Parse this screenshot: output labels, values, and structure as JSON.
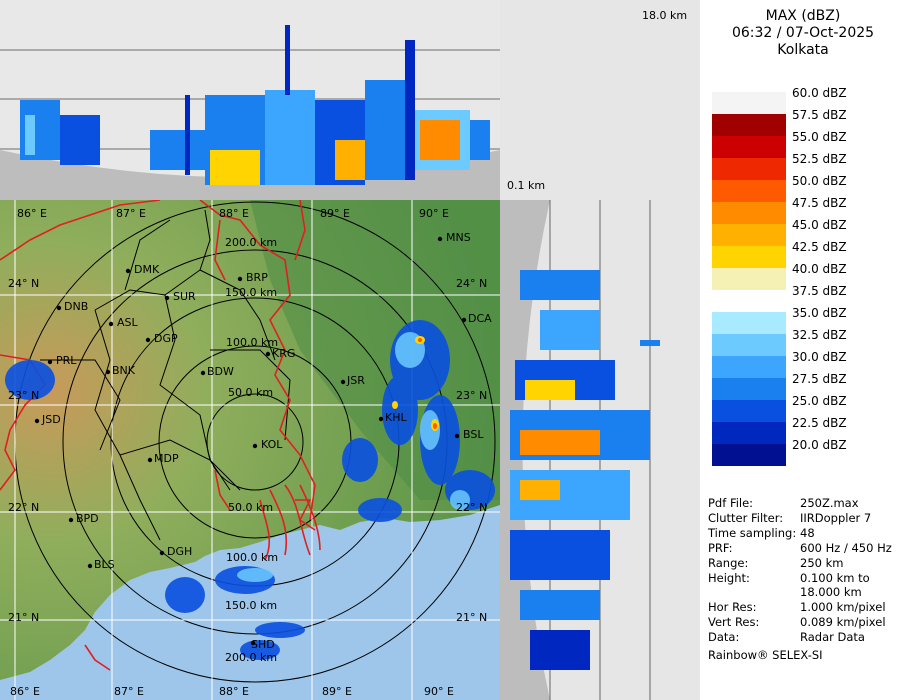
{
  "top_panel": {
    "top_label": "18.0 km"
  },
  "right_panel": {
    "top_label": "0.1 km"
  },
  "title": {
    "line1": "MAX (dBZ)",
    "line2": "06:32 / 07-Oct-2025",
    "line3": "Kolkata"
  },
  "legend": [
    {
      "label": "60.0 dBZ",
      "color": "#f4f4f4"
    },
    {
      "label": "57.5 dBZ",
      "color": "#a00000"
    },
    {
      "label": "55.0 dBZ",
      "color": "#cc0000"
    },
    {
      "label": "52.5 dBZ",
      "color": "#ee2800"
    },
    {
      "label": "50.0 dBZ",
      "color": "#ff5a00"
    },
    {
      "label": "47.5 dBZ",
      "color": "#ff8c00"
    },
    {
      "label": "45.0 dBZ",
      "color": "#ffb000"
    },
    {
      "label": "42.5 dBZ",
      "color": "#ffd400"
    },
    {
      "label": "40.0 dBZ",
      "color": "#f5f0b4"
    },
    {
      "label": "37.5 dBZ",
      "color": "#ffffff"
    },
    {
      "label": "35.0 dBZ",
      "color": "#a8eaff"
    },
    {
      "label": "32.5 dBZ",
      "color": "#6ccaff"
    },
    {
      "label": "30.0 dBZ",
      "color": "#3ca6ff"
    },
    {
      "label": "27.5 dBZ",
      "color": "#1a80f0"
    },
    {
      "label": "25.0 dBZ",
      "color": "#0a50e0"
    },
    {
      "label": "22.5 dBZ",
      "color": "#0028c0"
    },
    {
      "label": "20.0 dBZ",
      "color": "#001090"
    }
  ],
  "info": [
    {
      "key": "Pdf File:",
      "value": "250Z.max"
    },
    {
      "key": "Clutter Filter:",
      "value": "IIRDoppler 7"
    },
    {
      "key": "Time sampling:",
      "value": "48"
    },
    {
      "key": "PRF:",
      "value": "600 Hz / 450 Hz"
    },
    {
      "key": "Range:",
      "value": "250 km"
    },
    {
      "key": "Height:",
      "value": "0.100 km to\n18.000 km"
    },
    {
      "key": "Hor Res:",
      "value": "1.000 km/pixel"
    },
    {
      "key": "Vert Res:",
      "value": "0.089 km/pixel"
    },
    {
      "key": "Data:",
      "value": "Radar Data"
    }
  ],
  "footer": "Rainbow® SELEX-SI",
  "map": {
    "lon_labels": [
      "86° E",
      "87° E",
      "88° E",
      "89° E",
      "90° E"
    ],
    "lat_labels": [
      "24° N",
      "23° N",
      "22° N",
      "21° N"
    ],
    "range_labels": [
      "50.0 km",
      "100.0 km",
      "150.0 km",
      "200.0 km"
    ],
    "cities": [
      {
        "name": "MNS"
      },
      {
        "name": "DMK"
      },
      {
        "name": "BRP"
      },
      {
        "name": "SUR"
      },
      {
        "name": "DNB"
      },
      {
        "name": "ASL"
      },
      {
        "name": "DGP"
      },
      {
        "name": "DCA"
      },
      {
        "name": "KRG"
      },
      {
        "name": "PRL"
      },
      {
        "name": "BNK"
      },
      {
        "name": "BDW"
      },
      {
        "name": "JSR"
      },
      {
        "name": "KHL"
      },
      {
        "name": "JSD"
      },
      {
        "name": "BSL"
      },
      {
        "name": "MDP"
      },
      {
        "name": "KOL"
      },
      {
        "name": "BPD"
      },
      {
        "name": "DGH"
      },
      {
        "name": "BLS"
      },
      {
        "name": "SHD"
      }
    ],
    "colors": {
      "land": "#5f9a4c",
      "sea": "#9cc4e8",
      "grid": "#ffffff",
      "ring": "#000000",
      "border": "#e02020"
    }
  }
}
